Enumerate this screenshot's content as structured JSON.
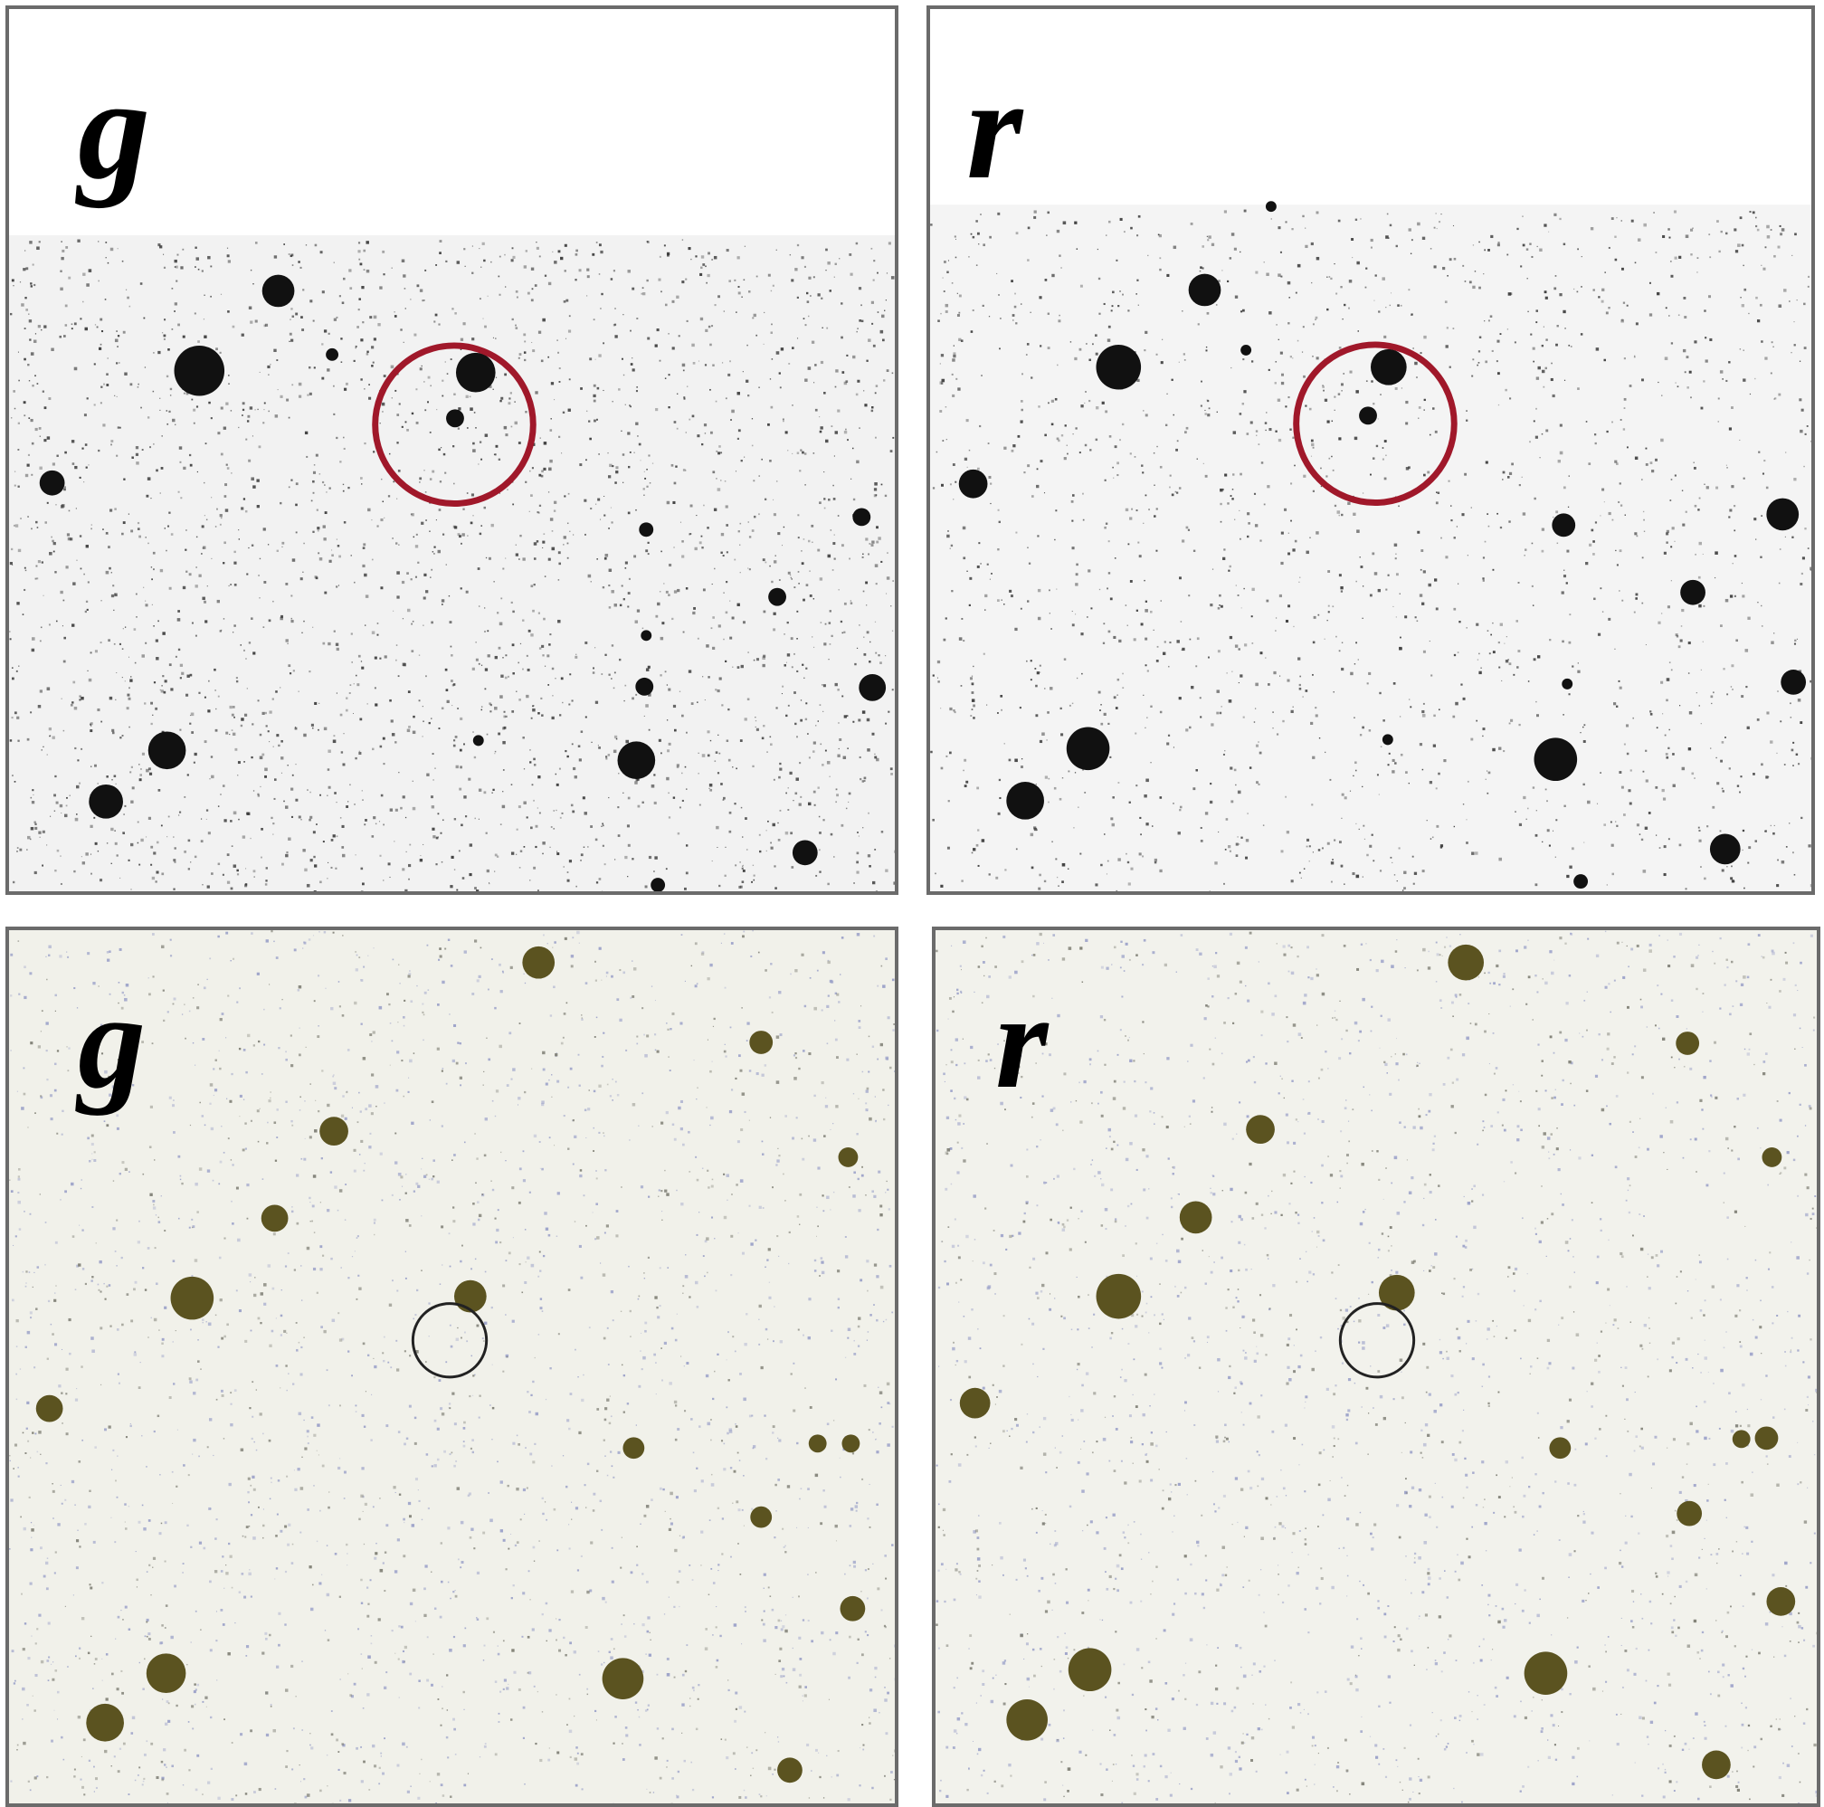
{
  "panels": [
    {
      "label": "g",
      "style": "grayscale",
      "marker_color": "#a0182a"
    },
    {
      "label": "r",
      "style": "grayscale",
      "marker_color": "#a0182a"
    },
    {
      "label": "g",
      "style": "color",
      "marker_color": "#222222"
    },
    {
      "label": "r",
      "style": "color",
      "marker_color": "#222222"
    }
  ],
  "colors": {
    "grayscale_star": "#111111",
    "color_star": "#5b5320",
    "frame": "#6b6b6b"
  }
}
